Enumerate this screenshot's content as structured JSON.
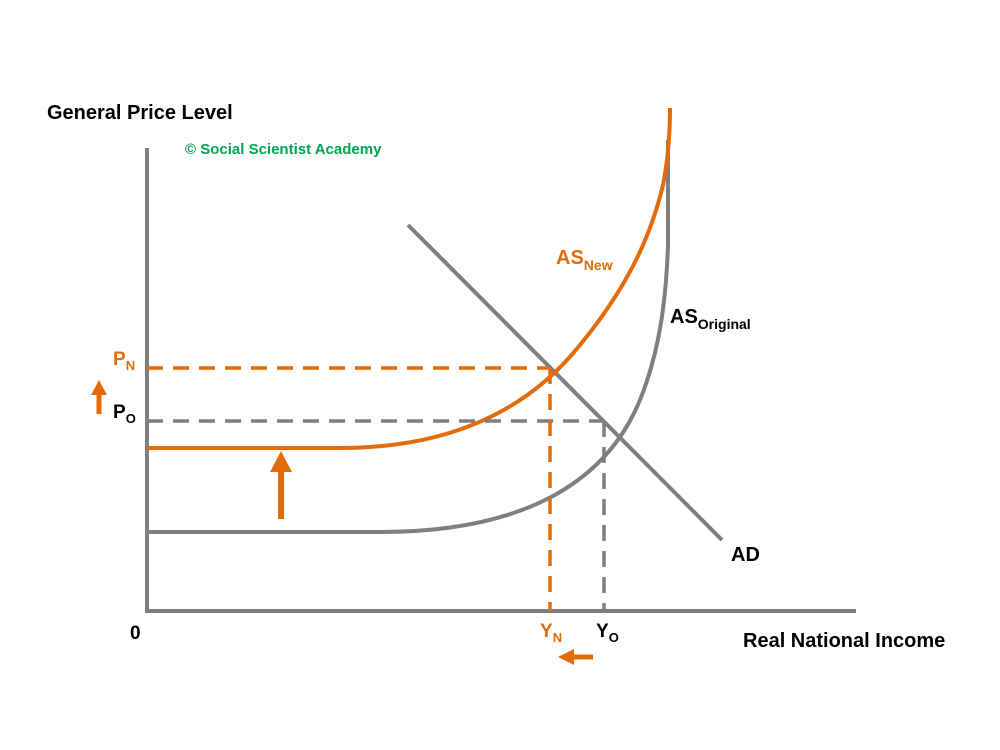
{
  "titles": {
    "y_axis": "General Price Level",
    "x_axis": "Real National Income",
    "copyright": "© Social Scientist Academy",
    "origin": "0"
  },
  "curves": {
    "as_new": {
      "main": "AS",
      "sub": "New"
    },
    "as_original": {
      "main": "AS",
      "sub": "Original"
    },
    "ad": "AD"
  },
  "levels": {
    "p_new": {
      "main": "P",
      "sub": "N"
    },
    "p_original": {
      "main": "P",
      "sub": "O"
    },
    "y_new": {
      "main": "Y",
      "sub": "N"
    },
    "y_original": {
      "main": "Y",
      "sub": "O"
    }
  },
  "colors": {
    "axis": "#7f7f7f",
    "original": "#7f7f7f",
    "new": "#e36c0a",
    "text": "#000000",
    "copyright": "#00a651"
  }
}
